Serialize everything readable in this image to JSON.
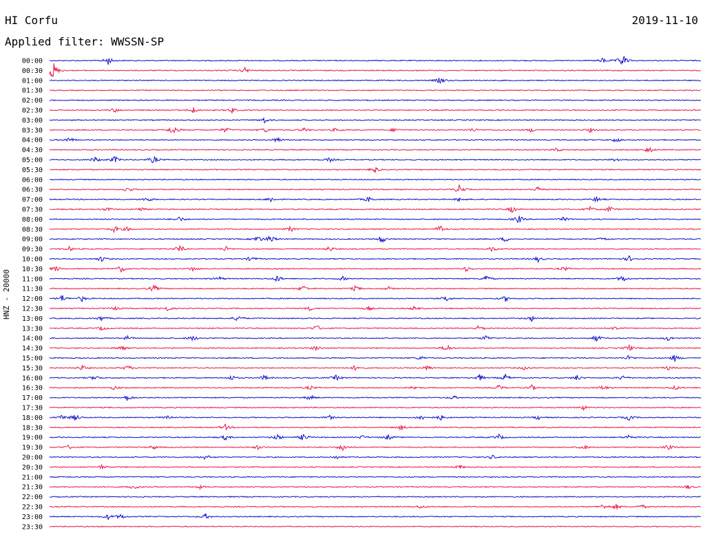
{
  "header": {
    "station": "HI Corfu",
    "date": "2019-11-10",
    "filter": "Applied filter: WWSSN-SP"
  },
  "chart_data": {
    "type": "line",
    "title": "HI Corfu",
    "subtitle": "Applied filter: WWSSN-SP",
    "ylabel": "HNZ - 20000",
    "xlabel": "",
    "grid": false,
    "colors": {
      "even": "#1010c8",
      "odd": "#e8184a"
    },
    "y_ticks": [
      "00:00",
      "00:30",
      "01:00",
      "01:30",
      "02:00",
      "02:30",
      "03:00",
      "03:30",
      "04:00",
      "04:30",
      "05:00",
      "05:30",
      "06:00",
      "06:30",
      "07:00",
      "07:30",
      "08:00",
      "08:30",
      "09:00",
      "09:30",
      "10:00",
      "10:30",
      "11:00",
      "11:30",
      "12:00",
      "12:30",
      "13:00",
      "13:30",
      "14:00",
      "14:30",
      "15:00",
      "15:30",
      "16:00",
      "16:30",
      "17:00",
      "17:30",
      "18:00",
      "18:30",
      "19:00",
      "19:30",
      "20:00",
      "20:30",
      "21:00",
      "21:30",
      "22:00",
      "22:30",
      "23:00",
      "23:30"
    ],
    "x_range_minutes": [
      0,
      30
    ],
    "events": [
      [
        [
          0.09,
          0.6
        ],
        [
          0.85,
          0.4
        ],
        [
          0.88,
          1.0
        ]
      ],
      [
        [
          0.005,
          1.6
        ],
        [
          0.3,
          0.4
        ]
      ],
      [
        [
          0.6,
          0.5
        ]
      ],
      [],
      [],
      [
        [
          0.1,
          0.3
        ],
        [
          0.22,
          0.5
        ],
        [
          0.28,
          0.4
        ]
      ],
      [
        [
          0.33,
          0.4
        ]
      ],
      [
        [
          0.19,
          0.8
        ],
        [
          0.27,
          0.4
        ],
        [
          0.33,
          0.4
        ],
        [
          0.39,
          0.3
        ],
        [
          0.44,
          0.3
        ],
        [
          0.53,
          0.3
        ],
        [
          0.65,
          0.3
        ],
        [
          0.74,
          0.3
        ],
        [
          0.83,
          0.3
        ]
      ],
      [
        [
          0.03,
          0.4
        ],
        [
          0.35,
          0.4
        ],
        [
          0.87,
          0.4
        ]
      ],
      [
        [
          0.78,
          0.3
        ],
        [
          0.92,
          0.5
        ]
      ],
      [
        [
          0.07,
          0.4
        ],
        [
          0.1,
          0.5
        ],
        [
          0.16,
          0.6
        ],
        [
          0.43,
          0.3
        ],
        [
          0.87,
          0.3
        ]
      ],
      [
        [
          0.5,
          0.4
        ]
      ],
      [],
      [
        [
          0.12,
          0.4
        ],
        [
          0.63,
          0.8
        ],
        [
          0.75,
          0.4
        ]
      ],
      [
        [
          0.15,
          0.4
        ],
        [
          0.34,
          0.4
        ],
        [
          0.49,
          0.4
        ],
        [
          0.63,
          0.3
        ],
        [
          0.84,
          0.4
        ]
      ],
      [
        [
          0.09,
          0.3
        ],
        [
          0.14,
          0.3
        ],
        [
          0.71,
          0.5
        ],
        [
          0.83,
          0.4
        ],
        [
          0.86,
          0.5
        ]
      ],
      [
        [
          0.2,
          0.4
        ],
        [
          0.72,
          0.6
        ],
        [
          0.79,
          0.3
        ]
      ],
      [
        [
          0.1,
          0.5
        ],
        [
          0.12,
          0.3
        ],
        [
          0.37,
          0.4
        ],
        [
          0.6,
          0.6
        ]
      ],
      [
        [
          0.32,
          0.5
        ],
        [
          0.34,
          0.6
        ],
        [
          0.51,
          0.6
        ],
        [
          0.7,
          0.4
        ],
        [
          0.85,
          0.3
        ]
      ],
      [
        [
          0.03,
          0.3
        ],
        [
          0.2,
          0.6
        ],
        [
          0.27,
          0.4
        ],
        [
          0.43,
          0.4
        ],
        [
          0.68,
          0.4
        ]
      ],
      [
        [
          0.08,
          0.4
        ],
        [
          0.31,
          0.4
        ],
        [
          0.75,
          0.4
        ],
        [
          0.89,
          0.4
        ]
      ],
      [
        [
          0.01,
          0.4
        ],
        [
          0.11,
          0.5
        ],
        [
          0.22,
          0.4
        ],
        [
          0.64,
          0.4
        ],
        [
          0.79,
          0.3
        ]
      ],
      [
        [
          0.26,
          0.3
        ],
        [
          0.35,
          0.5
        ],
        [
          0.45,
          0.3
        ],
        [
          0.67,
          0.6
        ],
        [
          0.88,
          0.5
        ]
      ],
      [
        [
          0.16,
          0.5
        ],
        [
          0.39,
          0.5
        ],
        [
          0.47,
          0.4
        ],
        [
          0.52,
          0.3
        ]
      ],
      [
        [
          0.02,
          0.5
        ],
        [
          0.05,
          0.4
        ],
        [
          0.61,
          0.4
        ],
        [
          0.7,
          0.4
        ]
      ],
      [
        [
          0.1,
          0.3
        ],
        [
          0.18,
          0.4
        ],
        [
          0.4,
          0.3
        ],
        [
          0.49,
          0.3
        ],
        [
          0.56,
          0.3
        ]
      ],
      [
        [
          0.08,
          0.4
        ],
        [
          0.29,
          0.5
        ],
        [
          0.74,
          0.4
        ]
      ],
      [
        [
          0.08,
          0.3
        ],
        [
          0.41,
          0.5
        ],
        [
          0.66,
          0.5
        ],
        [
          0.87,
          0.4
        ]
      ],
      [
        [
          0.12,
          0.3
        ],
        [
          0.22,
          0.4
        ],
        [
          0.67,
          0.4
        ],
        [
          0.84,
          0.5
        ],
        [
          0.95,
          0.4
        ]
      ],
      [
        [
          0.11,
          0.4
        ],
        [
          0.41,
          0.4
        ],
        [
          0.61,
          0.6
        ],
        [
          0.89,
          0.5
        ]
      ],
      [
        [
          0.57,
          0.3
        ],
        [
          0.89,
          0.4
        ],
        [
          0.96,
          0.5
        ]
      ],
      [
        [
          0.05,
          0.4
        ],
        [
          0.12,
          0.4
        ],
        [
          0.47,
          0.4
        ],
        [
          0.58,
          0.4
        ],
        [
          0.73,
          0.3
        ],
        [
          0.95,
          0.3
        ]
      ],
      [
        [
          0.07,
          0.4
        ],
        [
          0.28,
          0.4
        ],
        [
          0.33,
          0.4
        ],
        [
          0.44,
          0.4
        ],
        [
          0.66,
          0.5
        ],
        [
          0.7,
          0.5
        ],
        [
          0.81,
          0.4
        ],
        [
          0.88,
          0.4
        ]
      ],
      [
        [
          0.1,
          0.3
        ],
        [
          0.4,
          0.3
        ],
        [
          0.56,
          0.3
        ],
        [
          0.69,
          0.4
        ],
        [
          0.74,
          0.4
        ],
        [
          0.85,
          0.4
        ],
        [
          0.96,
          0.4
        ]
      ],
      [
        [
          0.12,
          0.5
        ],
        [
          0.4,
          0.4
        ],
        [
          0.62,
          0.3
        ]
      ],
      [
        [
          0.82,
          0.3
        ]
      ],
      [
        [
          0.02,
          0.4
        ],
        [
          0.04,
          0.5
        ],
        [
          0.18,
          0.4
        ],
        [
          0.43,
          0.3
        ],
        [
          0.57,
          0.4
        ],
        [
          0.6,
          0.4
        ],
        [
          0.75,
          0.3
        ],
        [
          0.89,
          0.4
        ]
      ],
      [
        [
          0.27,
          0.4
        ],
        [
          0.54,
          0.4
        ]
      ],
      [
        [
          0.27,
          0.4
        ],
        [
          0.35,
          0.5
        ],
        [
          0.39,
          0.6
        ],
        [
          0.48,
          0.3
        ],
        [
          0.52,
          0.4
        ],
        [
          0.69,
          0.4
        ],
        [
          0.89,
          0.4
        ]
      ],
      [
        [
          0.03,
          0.3
        ],
        [
          0.16,
          0.3
        ],
        [
          0.32,
          0.3
        ],
        [
          0.45,
          0.6
        ],
        [
          0.82,
          0.4
        ],
        [
          0.95,
          0.4
        ]
      ],
      [
        [
          0.24,
          0.4
        ],
        [
          0.44,
          0.3
        ],
        [
          0.68,
          0.3
        ]
      ],
      [
        [
          0.08,
          0.3
        ],
        [
          0.63,
          0.3
        ]
      ],
      [],
      [
        [
          0.13,
          0.4
        ],
        [
          0.23,
          0.3
        ],
        [
          0.98,
          0.3
        ]
      ],
      [],
      [
        [
          0.57,
          0.3
        ],
        [
          0.85,
          0.4
        ],
        [
          0.87,
          0.4
        ],
        [
          0.91,
          0.3
        ]
      ],
      [
        [
          0.09,
          0.4
        ],
        [
          0.11,
          0.4
        ],
        [
          0.24,
          0.4
        ]
      ],
      []
    ]
  }
}
